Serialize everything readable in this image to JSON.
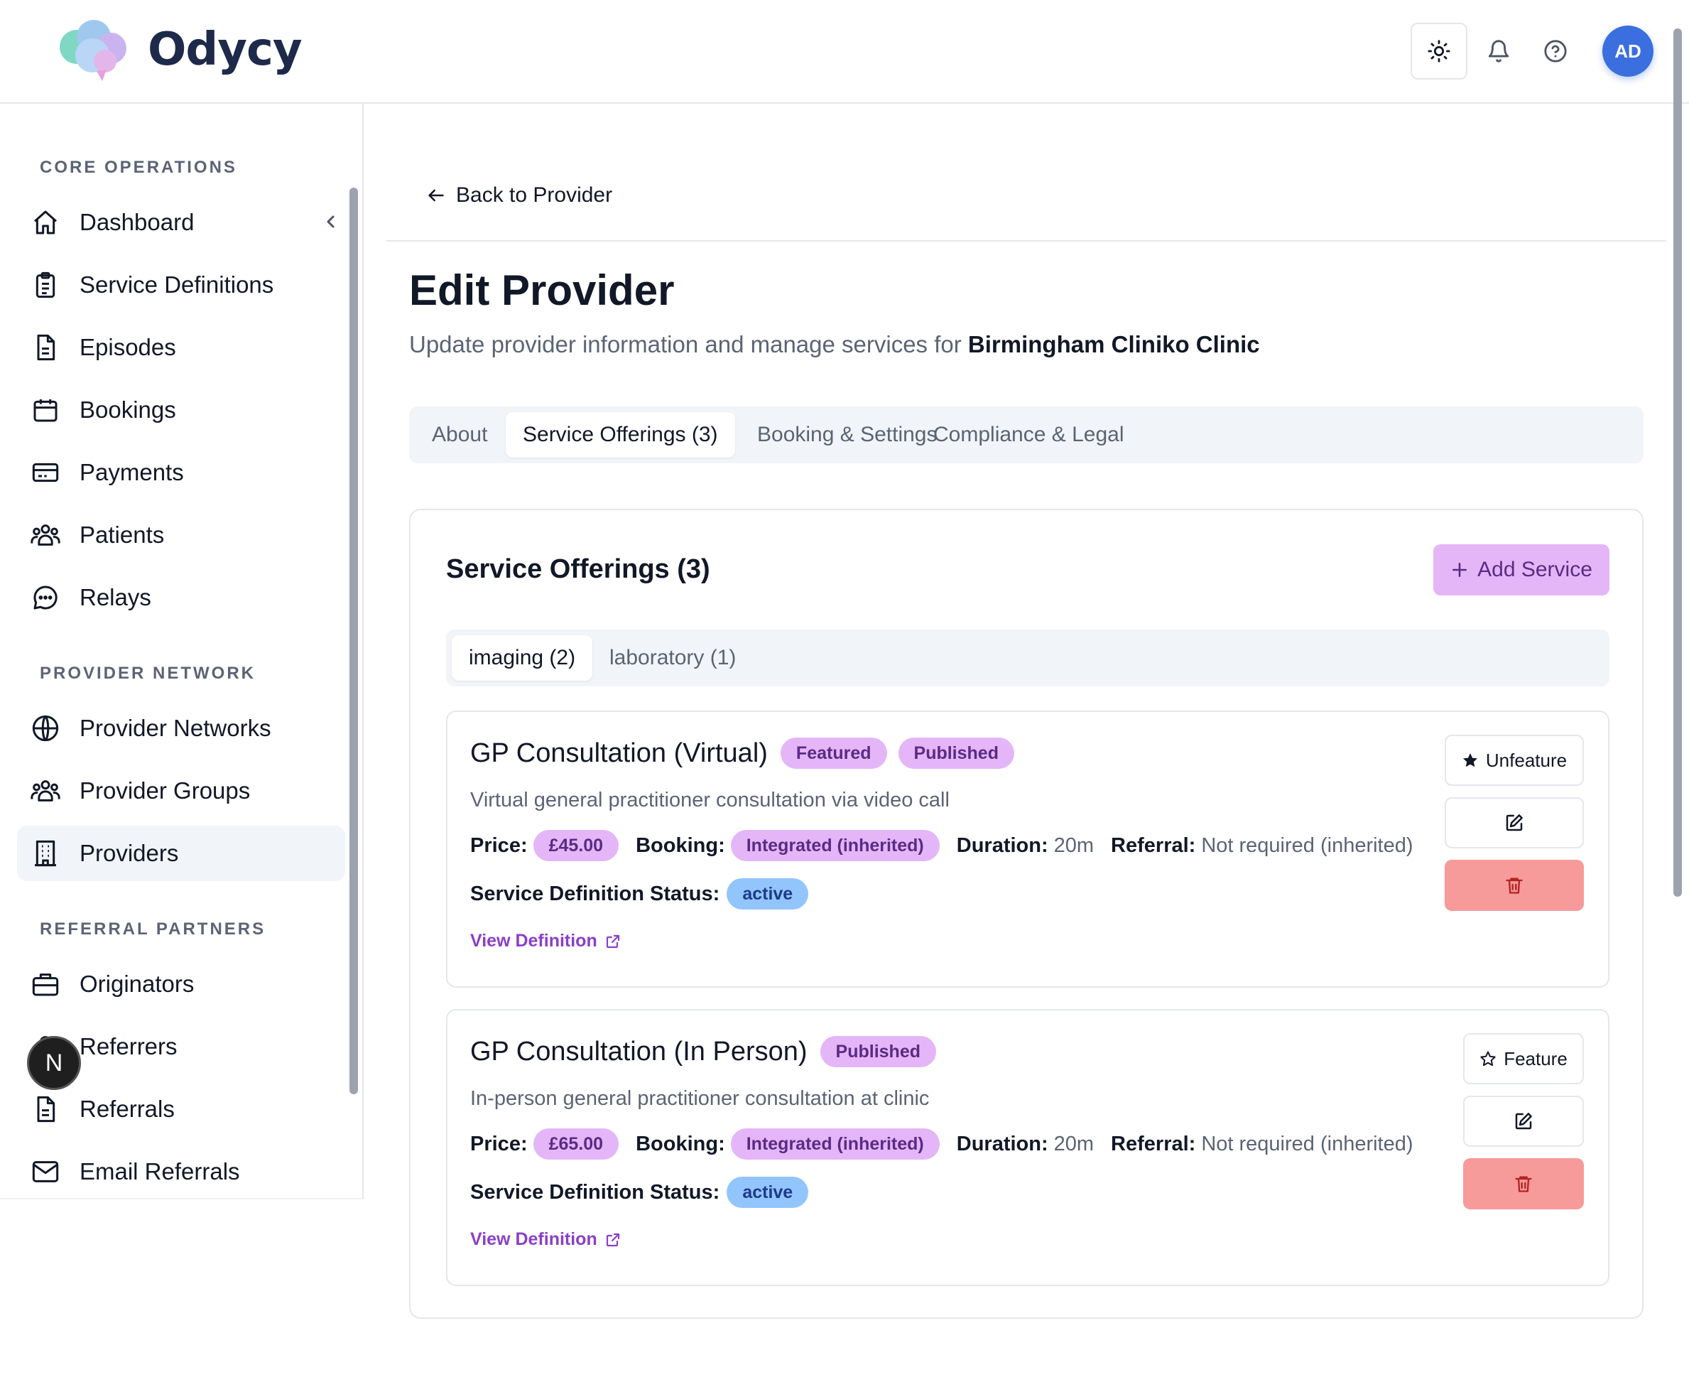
{
  "app": {
    "name": "Odycy"
  },
  "header": {
    "avatar_initials": "AD"
  },
  "sidebar": {
    "sections": [
      {
        "title": "CORE OPERATIONS",
        "items": [
          {
            "label": "Dashboard",
            "icon": "home-icon"
          },
          {
            "label": "Service Definitions",
            "icon": "clipboard-icon"
          },
          {
            "label": "Episodes",
            "icon": "document-icon"
          },
          {
            "label": "Bookings",
            "icon": "calendar-icon"
          },
          {
            "label": "Payments",
            "icon": "credit-card-icon"
          },
          {
            "label": "Patients",
            "icon": "users-icon"
          },
          {
            "label": "Relays",
            "icon": "chat-icon"
          }
        ]
      },
      {
        "title": "PROVIDER NETWORK",
        "items": [
          {
            "label": "Provider Networks",
            "icon": "globe-icon"
          },
          {
            "label": "Provider Groups",
            "icon": "users-icon"
          },
          {
            "label": "Providers",
            "icon": "building-icon",
            "active": true
          }
        ]
      },
      {
        "title": "REFERRAL PARTNERS",
        "items": [
          {
            "label": "Originators",
            "icon": "briefcase-icon"
          },
          {
            "label": "Referrers",
            "icon": "user-icon"
          },
          {
            "label": "Referrals",
            "icon": "document-icon"
          },
          {
            "label": "Email Referrals",
            "icon": "mail-icon"
          }
        ]
      }
    ],
    "floating_badge": "N"
  },
  "main": {
    "back_label": "Back to Provider",
    "title": "Edit Provider",
    "subtitle_prefix": "Update provider information and manage services for",
    "provider_name": "Birmingham Cliniko Clinic",
    "tabs": [
      {
        "label": "About"
      },
      {
        "label": "Service Offerings (3)",
        "active": true
      },
      {
        "label": "Booking & Settings"
      },
      {
        "label": "Compliance & Legal"
      }
    ],
    "offerings": {
      "title": "Service Offerings (3)",
      "add_label": "Add Service",
      "subtabs": [
        {
          "label": "imaging (2)",
          "active": true
        },
        {
          "label": "laboratory (1)"
        }
      ],
      "services": [
        {
          "name": "GP Consultation (Virtual)",
          "badges": [
            "Featured",
            "Published"
          ],
          "description": "Virtual general practitioner consultation via video call",
          "price_label": "Price:",
          "price": "£45.00",
          "booking_label": "Booking:",
          "booking": "Integrated (inherited)",
          "duration_label": "Duration:",
          "duration": "20m",
          "referral_label": "Referral:",
          "referral": "Not required (inherited)",
          "status_label": "Service Definition Status:",
          "status": "active",
          "view_label": "View Definition",
          "feature_action": "Unfeature"
        },
        {
          "name": "GP Consultation (In Person)",
          "badges": [
            "Published"
          ],
          "description": "In-person general practitioner consultation at clinic",
          "price_label": "Price:",
          "price": "£65.00",
          "booking_label": "Booking:",
          "booking": "Integrated (inherited)",
          "duration_label": "Duration:",
          "duration": "20m",
          "referral_label": "Referral:",
          "referral": "Not required (inherited)",
          "status_label": "Service Definition Status:",
          "status": "active",
          "view_label": "View Definition",
          "feature_action": "Feature"
        }
      ]
    }
  },
  "colors": {
    "accent": "#e4b6f7",
    "accent_text": "#5b2a86",
    "status_blue": "#93c5fd",
    "danger": "#f79a9a",
    "link": "#8b3fc8"
  }
}
